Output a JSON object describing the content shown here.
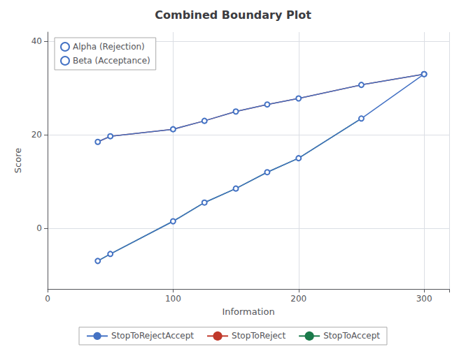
{
  "chart_data": {
    "type": "line",
    "title": "Combined Boundary Plot",
    "xlabel": "Information",
    "ylabel": "Score",
    "x": [
      40,
      50,
      100,
      125,
      150,
      175,
      200,
      250,
      300
    ],
    "series": [
      {
        "name": "Alpha (Rejection)",
        "group": "StopToRejectAccept",
        "color": "#4472c4",
        "marker": "circle",
        "line_style": "solid",
        "values": [
          18.5,
          19.7,
          21.2,
          23.0,
          25.0,
          26.5,
          27.8,
          30.7,
          33.0
        ]
      },
      {
        "name": "Beta (Acceptance)",
        "group": "StopToRejectAccept",
        "color": "#4472c4",
        "marker": "circle",
        "line_style": "solid",
        "values": [
          -7.0,
          -5.5,
          1.5,
          5.5,
          8.5,
          12.0,
          15.0,
          23.5,
          33.0
        ]
      },
      {
        "name": "StopToReject",
        "color": "#c0392b",
        "marker": "none",
        "line_style": "solid",
        "values": [
          18.5,
          19.7,
          21.2,
          23.0,
          25.0,
          26.5,
          27.8,
          30.7,
          33.0
        ]
      },
      {
        "name": "StopToAccept",
        "color": "#1a7a4a",
        "marker": "none",
        "line_style": "solid",
        "values": [
          -7.0,
          -5.5,
          1.5,
          5.5,
          8.5,
          12.0,
          15.0,
          23.5,
          null
        ]
      }
    ],
    "xlim": [
      0,
      320
    ],
    "ylim": [
      -13,
      42
    ],
    "xticks": [
      0,
      100,
      200,
      300
    ],
    "yticks": [
      0,
      20,
      40
    ],
    "grid": true,
    "legend": "bottom"
  }
}
